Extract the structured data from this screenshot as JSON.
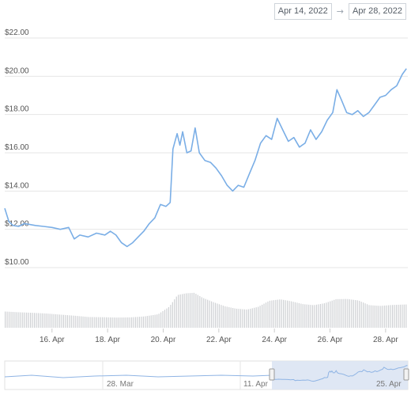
{
  "date_range": {
    "from": "Apr 14, 2022",
    "separator": "→",
    "to": "Apr 28, 2022"
  },
  "navigator": {
    "labels": [
      "28. Mar",
      "11. Apr",
      "25. Apr"
    ]
  },
  "colors": {
    "line": "#7aaee6",
    "volume": "#cfd1d4",
    "grid": "#e6e6e6",
    "nav_mask": "#dbe4f3",
    "nav_line": "#8fb4e4"
  },
  "chart_data": {
    "type": "line",
    "title": "",
    "xlabel": "",
    "ylabel": "",
    "x_ticks": [
      "16. Apr",
      "18. Apr",
      "20. Apr",
      "22. Apr",
      "24. Apr",
      "26. Apr",
      "28. Apr"
    ],
    "y_ticks": [
      "$10.00",
      "$12.00",
      "$14.00",
      "$16.00",
      "$18.00",
      "$20.00",
      "$22.00"
    ],
    "ylim": [
      10,
      22
    ],
    "x_range_days": [
      14.3,
      28.8
    ],
    "series": [
      {
        "points": [
          [
            14.3,
            13.1
          ],
          [
            14.45,
            12.4
          ],
          [
            14.6,
            12.2
          ],
          [
            14.8,
            12.15
          ],
          [
            15.0,
            12.3
          ],
          [
            15.2,
            12.25
          ],
          [
            15.4,
            12.2
          ],
          [
            15.7,
            12.15
          ],
          [
            16.0,
            12.1
          ],
          [
            16.3,
            12.0
          ],
          [
            16.6,
            12.1
          ],
          [
            16.8,
            11.5
          ],
          [
            17.0,
            11.7
          ],
          [
            17.3,
            11.6
          ],
          [
            17.6,
            11.8
          ],
          [
            17.9,
            11.7
          ],
          [
            18.1,
            11.9
          ],
          [
            18.3,
            11.7
          ],
          [
            18.5,
            11.3
          ],
          [
            18.7,
            11.1
          ],
          [
            18.9,
            11.3
          ],
          [
            19.1,
            11.6
          ],
          [
            19.3,
            11.9
          ],
          [
            19.5,
            12.3
          ],
          [
            19.7,
            12.6
          ],
          [
            19.9,
            13.3
          ],
          [
            20.1,
            13.2
          ],
          [
            20.25,
            13.4
          ],
          [
            20.35,
            16.2
          ],
          [
            20.5,
            17.0
          ],
          [
            20.6,
            16.4
          ],
          [
            20.7,
            17.1
          ],
          [
            20.85,
            16.0
          ],
          [
            21.0,
            16.1
          ],
          [
            21.15,
            17.3
          ],
          [
            21.3,
            16.0
          ],
          [
            21.5,
            15.6
          ],
          [
            21.7,
            15.5
          ],
          [
            21.9,
            15.2
          ],
          [
            22.1,
            14.8
          ],
          [
            22.3,
            14.3
          ],
          [
            22.5,
            14.0
          ],
          [
            22.7,
            14.3
          ],
          [
            22.9,
            14.2
          ],
          [
            23.1,
            14.9
          ],
          [
            23.3,
            15.6
          ],
          [
            23.5,
            16.5
          ],
          [
            23.7,
            16.9
          ],
          [
            23.9,
            16.7
          ],
          [
            24.1,
            17.8
          ],
          [
            24.3,
            17.2
          ],
          [
            24.5,
            16.6
          ],
          [
            24.7,
            16.8
          ],
          [
            24.9,
            16.3
          ],
          [
            25.1,
            16.5
          ],
          [
            25.3,
            17.2
          ],
          [
            25.5,
            16.7
          ],
          [
            25.7,
            17.1
          ],
          [
            25.9,
            17.7
          ],
          [
            26.1,
            18.1
          ],
          [
            26.25,
            19.3
          ],
          [
            26.4,
            18.8
          ],
          [
            26.6,
            18.1
          ],
          [
            26.8,
            18.0
          ],
          [
            27.0,
            18.2
          ],
          [
            27.2,
            17.9
          ],
          [
            27.4,
            18.1
          ],
          [
            27.6,
            18.5
          ],
          [
            27.8,
            18.9
          ],
          [
            28.0,
            19.0
          ],
          [
            28.2,
            19.3
          ],
          [
            28.4,
            19.5
          ],
          [
            28.6,
            20.1
          ],
          [
            28.75,
            20.4
          ]
        ]
      }
    ],
    "volume": [
      [
        14.3,
        8.9
      ],
      [
        14.8,
        8.5
      ],
      [
        15.3,
        8.2
      ],
      [
        15.8,
        7.8
      ],
      [
        16.3,
        7.2
      ],
      [
        16.8,
        6.6
      ],
      [
        17.3,
        5.9
      ],
      [
        17.8,
        5.8
      ],
      [
        18.3,
        5.6
      ],
      [
        18.8,
        5.7
      ],
      [
        19.3,
        6.2
      ],
      [
        19.8,
        7.4
      ],
      [
        20.2,
        11.5
      ],
      [
        20.5,
        18.0
      ],
      [
        20.8,
        18.9
      ],
      [
        21.1,
        19.2
      ],
      [
        21.4,
        16.5
      ],
      [
        21.8,
        14.0
      ],
      [
        22.2,
        11.8
      ],
      [
        22.6,
        10.5
      ],
      [
        23.0,
        10.0
      ],
      [
        23.4,
        11.5
      ],
      [
        23.8,
        14.8
      ],
      [
        24.2,
        15.6
      ],
      [
        24.6,
        14.5
      ],
      [
        25.0,
        13.0
      ],
      [
        25.4,
        12.4
      ],
      [
        25.8,
        13.5
      ],
      [
        26.2,
        15.7
      ],
      [
        26.6,
        15.8
      ],
      [
        27.0,
        15.0
      ],
      [
        27.4,
        12.4
      ],
      [
        27.8,
        12.0
      ],
      [
        28.2,
        12.5
      ],
      [
        28.75,
        12.8
      ]
    ]
  }
}
